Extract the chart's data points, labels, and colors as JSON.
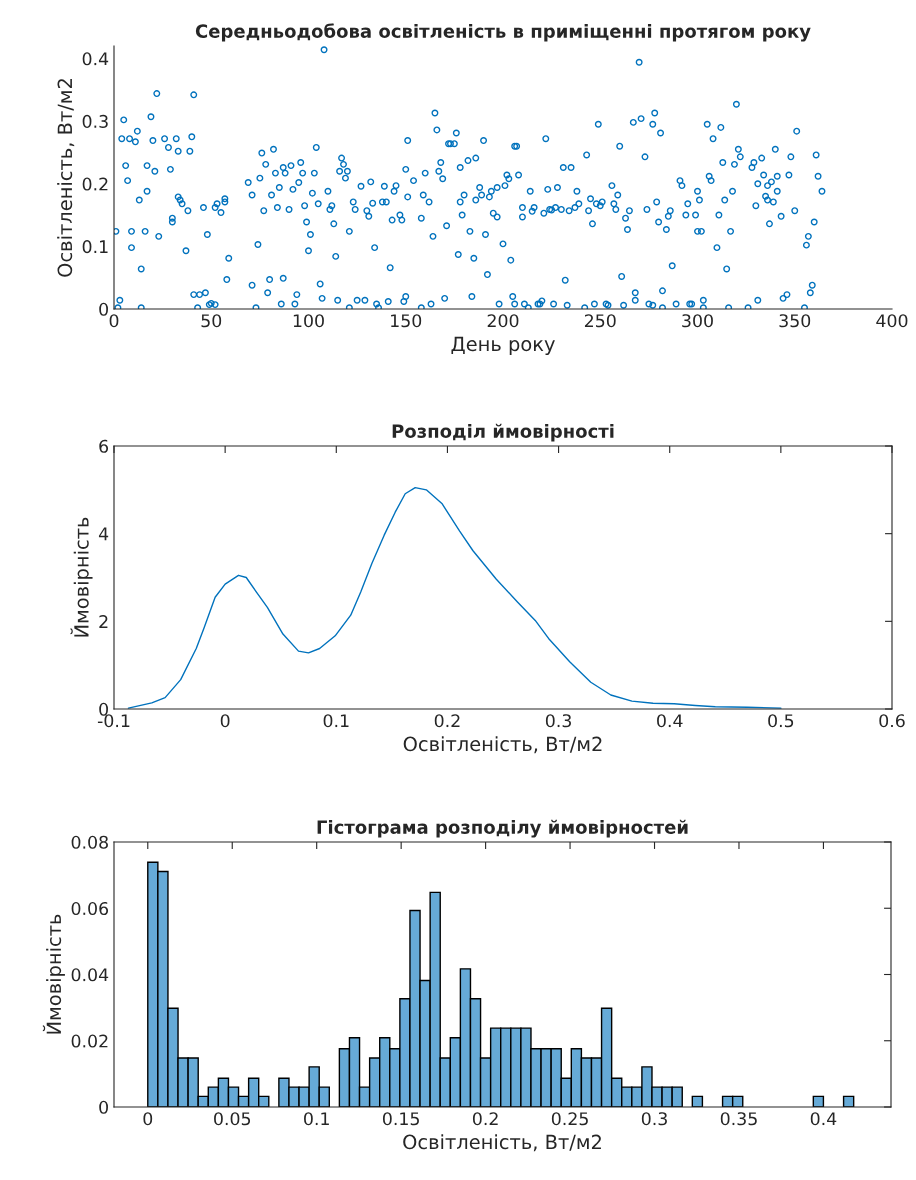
{
  "chart_data": [
    {
      "type": "scatter",
      "title": "Середньодобова освітленість в приміщенні протягом року",
      "xlabel": "День року",
      "ylabel": "Освітленість, Вт/м2",
      "color": "#0072bd",
      "marker": "circle",
      "xlim": [
        0,
        400
      ],
      "ylim": [
        0,
        0.42
      ],
      "xticks": [
        0,
        50,
        100,
        150,
        200,
        250,
        300,
        350,
        400
      ],
      "yticks": [
        0,
        0.1,
        0.2,
        0.3,
        0.4
      ],
      "x": [
        1,
        3,
        2,
        4,
        5,
        6,
        7,
        8,
        9,
        9,
        11,
        12,
        13,
        14,
        14,
        16,
        17,
        17,
        19,
        20,
        21,
        22,
        23,
        26,
        28,
        29,
        32,
        33,
        33,
        34,
        35,
        30,
        30,
        37,
        38,
        39,
        40,
        41,
        41,
        43,
        44,
        46,
        47,
        48,
        49,
        50,
        52,
        52,
        53,
        55,
        57,
        57,
        59,
        58,
        69,
        71,
        71,
        73,
        74,
        75,
        76,
        77,
        78,
        79,
        80,
        81,
        82,
        83,
        84,
        85,
        86,
        87,
        87,
        88,
        90,
        91,
        92,
        93,
        94,
        95,
        96,
        97,
        98,
        99,
        100,
        101,
        102,
        103,
        104,
        105,
        106,
        107,
        108,
        110,
        111,
        112,
        113,
        114,
        115,
        116,
        117,
        118,
        119,
        120,
        121,
        121,
        123,
        124,
        125,
        127,
        129,
        130,
        131,
        132,
        133,
        134,
        135,
        136,
        138,
        139,
        140,
        141,
        142,
        143,
        144,
        145,
        147,
        148,
        149,
        150,
        150,
        151,
        151,
        154,
        158,
        158,
        159,
        160,
        162,
        163,
        164,
        165,
        166,
        167,
        168,
        169,
        170,
        171,
        172,
        173,
        175,
        176,
        177,
        178,
        178,
        179,
        180,
        182,
        183,
        184,
        185,
        186,
        186,
        188,
        189,
        190,
        191,
        192,
        193,
        194,
        195,
        197,
        197,
        198,
        200,
        201,
        202,
        203,
        204,
        205,
        206,
        206,
        207,
        208,
        210,
        210,
        211,
        213,
        214,
        215,
        216,
        218,
        219,
        220,
        221,
        222,
        223,
        224,
        225,
        226,
        227,
        228,
        230,
        231,
        232,
        233,
        234,
        235,
        237,
        238,
        239,
        242,
        243,
        244,
        245,
        246,
        247,
        248,
        249,
        250,
        251,
        253,
        254,
        256,
        257,
        258,
        259,
        260,
        261,
        262,
        263,
        264,
        265,
        267,
        268,
        268,
        270,
        271,
        273,
        274,
        275,
        277,
        277,
        278,
        279,
        280,
        281,
        282,
        282,
        284,
        285,
        286,
        287,
        289,
        291,
        292,
        294,
        295,
        296,
        297,
        299,
        300,
        300,
        301,
        302,
        303,
        303,
        305,
        306,
        307,
        308,
        310,
        311,
        312,
        313,
        314,
        315,
        316,
        317,
        318,
        319,
        320,
        321,
        322,
        326,
        328,
        329,
        330,
        331,
        331,
        333,
        334,
        335,
        336,
        336,
        337,
        338,
        339,
        340,
        341,
        341,
        343,
        344,
        346,
        347,
        348,
        350,
        351,
        355,
        356,
        357,
        358,
        359,
        360,
        361,
        362,
        364
      ],
      "values": [
        0.124,
        0.014,
        0.002,
        0.272,
        0.302,
        0.229,
        0.205,
        0.272,
        0.124,
        0.098,
        0.267,
        0.284,
        0.174,
        0.064,
        0.002,
        0.124,
        0.188,
        0.229,
        0.307,
        0.269,
        0.22,
        0.344,
        0.116,
        0.272,
        0.258,
        0.223,
        0.272,
        0.252,
        0.179,
        0.174,
        0.168,
        0.145,
        0.139,
        0.093,
        0.157,
        0.252,
        0.275,
        0.342,
        0.023,
        0.002,
        0.023,
        0.162,
        0.026,
        0.119,
        0.007,
        0.009,
        0.007,
        0.162,
        0.168,
        0.154,
        0.171,
        0.176,
        0.081,
        0.047,
        0.202,
        0.182,
        0.038,
        0.002,
        0.103,
        0.209,
        0.249,
        0.157,
        0.231,
        0.026,
        0.047,
        0.182,
        0.255,
        0.217,
        0.162,
        0.194,
        0.008,
        0.049,
        0.226,
        0.217,
        0.159,
        0.229,
        0.191,
        0.008,
        0.023,
        0.202,
        0.234,
        0.217,
        0.165,
        0.139,
        0.093,
        0.119,
        0.185,
        0.217,
        0.258,
        0.168,
        0.04,
        0.017,
        0.414,
        0.188,
        0.159,
        0.165,
        0.136,
        0.084,
        0.014,
        0.22,
        0.241,
        0.231,
        0.209,
        0.22,
        0.124,
        0.002,
        0.171,
        0.159,
        0.014,
        0.196,
        0.014,
        0.157,
        0.148,
        0.203,
        0.169,
        0.098,
        0.008,
        0.002,
        0.171,
        0.196,
        0.171,
        0.012,
        0.066,
        0.142,
        0.188,
        0.197,
        0.15,
        0.142,
        0.012,
        0.02,
        0.223,
        0.269,
        0.179,
        0.205,
        0.002,
        0.145,
        0.182,
        0.217,
        0.171,
        0.008,
        0.116,
        0.313,
        0.286,
        0.22,
        0.234,
        0.208,
        0.017,
        0.133,
        0.264,
        0.264,
        0.264,
        0.281,
        0.087,
        0.226,
        0.171,
        0.15,
        0.182,
        0.237,
        0.124,
        0.02,
        0.081,
        0.241,
        0.174,
        0.194,
        0.182,
        0.269,
        0.119,
        0.055,
        0.179,
        0.188,
        0.153,
        0.194,
        0.147,
        0.008,
        0.104,
        0.197,
        0.214,
        0.208,
        0.078,
        0.02,
        0.008,
        0.26,
        0.26,
        0.214,
        0.162,
        0.147,
        0.008,
        0.002,
        0.188,
        0.156,
        0.162,
        0.008,
        0.008,
        0.013,
        0.153,
        0.272,
        0.191,
        0.159,
        0.158,
        0.008,
        0.162,
        0.194,
        0.159,
        0.226,
        0.046,
        0.006,
        0.157,
        0.226,
        0.162,
        0.188,
        0.168,
        0.002,
        0.246,
        0.157,
        0.176,
        0.136,
        0.008,
        0.168,
        0.295,
        0.165,
        0.171,
        0.008,
        0.006,
        0.197,
        0.168,
        0.159,
        0.182,
        0.26,
        0.052,
        0.006,
        0.145,
        0.127,
        0.157,
        0.298,
        0.014,
        0.026,
        0.394,
        0.304,
        0.243,
        0.159,
        0.008,
        0.006,
        0.295,
        0.313,
        0.171,
        0.139,
        0.281,
        0.029,
        0.002,
        0.127,
        0.148,
        0.157,
        0.069,
        0.008,
        0.205,
        0.197,
        0.15,
        0.168,
        0.008,
        0.008,
        0.15,
        0.188,
        0.124,
        0.174,
        0.124,
        0.002,
        0.014,
        0.295,
        0.212,
        0.205,
        0.272,
        0.098,
        0.15,
        0.29,
        0.234,
        0.174,
        0.064,
        0.002,
        0.124,
        0.188,
        0.231,
        0.327,
        0.255,
        0.243,
        0.002,
        0.226,
        0.234,
        0.165,
        0.014,
        0.2,
        0.241,
        0.214,
        0.18,
        0.197,
        0.174,
        0.136,
        0.203,
        0.171,
        0.255,
        0.212,
        0.188,
        0.148,
        0.017,
        0.023,
        0.214,
        0.243,
        0.157,
        0.284,
        0.002,
        0.102,
        0.116,
        0.026,
        0.038,
        0.139,
        0.246,
        0.212,
        0.188
      ]
    },
    {
      "type": "line",
      "title": "Розподіл ймовірності",
      "xlabel": "Освітленість, Вт/м2",
      "ylabel": "Ймовірність",
      "color": "#0072bd",
      "xlim": [
        -0.1,
        0.6
      ],
      "ylim": [
        0,
        6
      ],
      "xticks": [
        -0.1,
        0,
        0.1,
        0.2,
        0.3,
        0.4,
        0.5,
        0.6
      ],
      "yticks": [
        0,
        2,
        4,
        6
      ],
      "x": [
        -0.087,
        -0.066,
        -0.054,
        -0.04,
        -0.026,
        -0.019,
        -0.009,
        0,
        0.012,
        0.019,
        0.028,
        0.038,
        0.052,
        0.066,
        0.075,
        0.085,
        0.099,
        0.113,
        0.122,
        0.132,
        0.143,
        0.153,
        0.162,
        0.171,
        0.181,
        0.195,
        0.211,
        0.223,
        0.244,
        0.263,
        0.279,
        0.291,
        0.31,
        0.329,
        0.347,
        0.366,
        0.385,
        0.404,
        0.423,
        0.441,
        0.47,
        0.5
      ],
      "values": [
        0.02,
        0.14,
        0.26,
        0.67,
        1.38,
        1.85,
        2.55,
        2.85,
        3.05,
        3.0,
        2.67,
        2.32,
        1.71,
        1.32,
        1.28,
        1.38,
        1.67,
        2.14,
        2.67,
        3.32,
        3.96,
        4.49,
        4.91,
        5.05,
        5.0,
        4.69,
        4.06,
        3.61,
        2.96,
        2.44,
        2.02,
        1.61,
        1.08,
        0.61,
        0.32,
        0.18,
        0.13,
        0.12,
        0.08,
        0.05,
        0.04,
        0.02
      ]
    },
    {
      "type": "histogram",
      "title": "Гістограма розподілу ймовірностей",
      "xlabel": "Освітленість, Вт/м2",
      "ylabel": "Ймовірність",
      "color": "#66aad7",
      "xlim": [
        -0.02,
        0.44
      ],
      "ylim": [
        0,
        0.08
      ],
      "xticks": [
        0,
        0.05,
        0.1,
        0.15,
        0.2,
        0.25,
        0.3,
        0.35,
        0.4
      ],
      "yticks": [
        0,
        0.02,
        0.04,
        0.06,
        0.08
      ],
      "bins": [
        0,
        0.00597,
        0.01194,
        0.01791,
        0.02388,
        0.02985,
        0.03582,
        0.04179,
        0.04776,
        0.05373,
        0.0597,
        0.06567,
        0.07164,
        0.07761,
        0.08358,
        0.08955,
        0.09552,
        0.10149,
        0.10746,
        0.11343,
        0.1194,
        0.12537,
        0.13134,
        0.13731,
        0.14328,
        0.14925,
        0.15522,
        0.16119,
        0.16716,
        0.17313,
        0.1791,
        0.18507,
        0.19104,
        0.19701,
        0.20298,
        0.20895,
        0.21492,
        0.22089,
        0.22686,
        0.23283,
        0.2388,
        0.24477,
        0.25074,
        0.25671,
        0.26268,
        0.26865,
        0.27462,
        0.28059,
        0.28656,
        0.29253,
        0.2985,
        0.30447,
        0.31044,
        0.31641,
        0.32238,
        0.32835,
        0.33432,
        0.34029,
        0.34626,
        0.35223,
        0.3582,
        0.36417,
        0.37014,
        0.37611,
        0.38208,
        0.38805,
        0.39402,
        0.39999,
        0.40596,
        0.41193,
        0.4179
      ],
      "values": [
        0.0739,
        0.0711,
        0.0298,
        0.0148,
        0.0148,
        0.0032,
        0.006,
        0.0087,
        0.006,
        0.0032,
        0.0087,
        0.0032,
        0,
        0.0087,
        0.006,
        0.006,
        0.0121,
        0.006,
        0,
        0.0176,
        0.0209,
        0.006,
        0.0148,
        0.0209,
        0.0176,
        0.0327,
        0.0593,
        0.0382,
        0.0648,
        0.0148,
        0.0209,
        0.0417,
        0.0327,
        0.0148,
        0.0238,
        0.0238,
        0.0238,
        0.0238,
        0.0176,
        0.0176,
        0.0176,
        0.0087,
        0.0176,
        0.0148,
        0.0148,
        0.0298,
        0.0087,
        0.006,
        0.006,
        0.0121,
        0.006,
        0.006,
        0.006,
        0,
        0.0032,
        0,
        0,
        0.0032,
        0.0032,
        0,
        0,
        0,
        0,
        0,
        0,
        0,
        0.0032,
        0,
        0,
        0.0032
      ]
    }
  ]
}
